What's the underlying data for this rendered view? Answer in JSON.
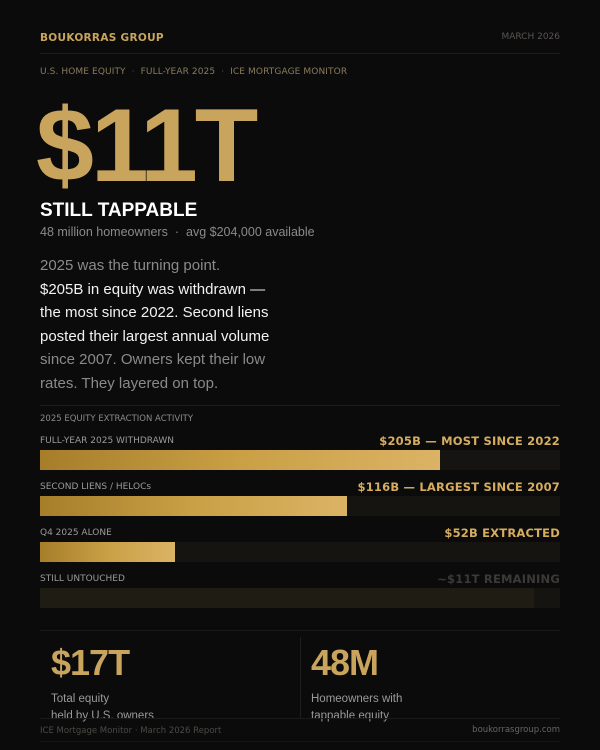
{
  "header": {
    "brand": "BOUKORRAS GROUP",
    "date": "MARCH 2026"
  },
  "kicker": {
    "items": [
      "U.S. HOME EQUITY",
      "FULL-YEAR 2025",
      "ICE MORTGAGE MONITOR"
    ],
    "separator": "·"
  },
  "hero": {
    "value": "$11T",
    "title": "STILL TAPPABLE",
    "meta_homeowners": "48 million homeowners",
    "meta_separator": "·",
    "meta_avg": "avg $204,000 available"
  },
  "paragraph": {
    "lines": [
      {
        "text": "2025 was the turning point.",
        "tone": "dim"
      },
      {
        "text": "$205B in equity was withdrawn —",
        "tone": "bright"
      },
      {
        "text": "the most since 2022. Second liens",
        "tone": "bright"
      },
      {
        "text": "posted their largest annual volume",
        "tone": "bright"
      },
      {
        "text": "since 2007. Owners kept their low",
        "tone": "dim"
      },
      {
        "text": "rates. They layered on top.",
        "tone": "dim"
      }
    ]
  },
  "bars": {
    "title": "2025 EQUITY EXTRACTION ACTIVITY",
    "rows": [
      {
        "label": "FULL-YEAR 2025 WITHDRAWN",
        "value": "$205B  —  MOST SINCE 2022",
        "percent": 77,
        "muted": false
      },
      {
        "label": "SECOND LIENS / HELOCs",
        "value": "$116B  —  LARGEST SINCE 2007",
        "percent": 59,
        "muted": false
      },
      {
        "label": "Q4 2025 ALONE",
        "value": "$52B EXTRACTED",
        "percent": 26,
        "muted": false
      },
      {
        "label": "STILL UNTOUCHED",
        "value": "~$11T REMAINING",
        "percent": 95,
        "muted": true
      }
    ]
  },
  "stats": [
    {
      "value": "$17T",
      "caption_line1": "Total equity",
      "caption_line2": "held by U.S. owners"
    },
    {
      "value": "48M",
      "caption_line1": "Homeowners with",
      "caption_line2": "tappable equity"
    }
  ],
  "footer": {
    "source": "ICE Mortgage Monitor · March 2026 Report",
    "site": "boukorrasgroup.com"
  },
  "colors": {
    "background": "#0b0b0c",
    "accent_gold": "#c9a45c",
    "value_gold": "#d6ad5f",
    "text_bright": "#f2f2f2",
    "text_dim": "#8a8a8a"
  }
}
